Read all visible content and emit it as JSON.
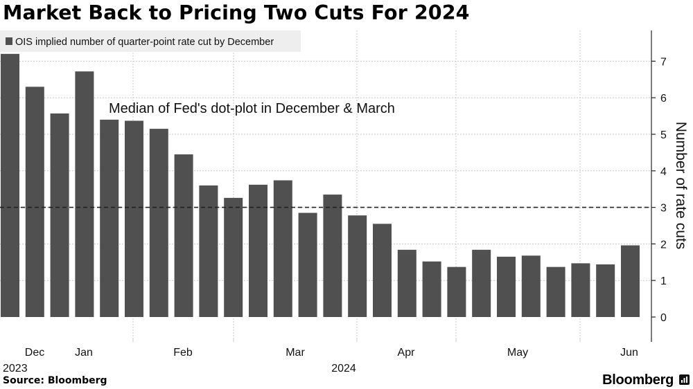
{
  "header": {
    "title": "Market Back to Pricing Two Cuts For 2024"
  },
  "footer": {
    "source": "Source: Bloomberg",
    "brand": "Bloomberg",
    "brand_icon": "chart-icon"
  },
  "colors": {
    "bar": "#505050",
    "grid": "#c8c8c8",
    "axis": "#222222",
    "legend_bg": "#eeeeee"
  },
  "chart_data": {
    "type": "bar",
    "title": "Market Back to Pricing Two Cuts For 2024",
    "ylabel": "Number of rate cuts",
    "xlabel": "",
    "ylim": [
      0,
      8
    ],
    "yticks": [
      0,
      1,
      2,
      3,
      4,
      5,
      6,
      7
    ],
    "grid": true,
    "legend": {
      "position": "top-left",
      "entries": [
        "OIS implied number of quarter-point rate cut by December"
      ]
    },
    "series": [
      {
        "name": "OIS implied number of quarter-point rate cut by December",
        "values": [
          7.2,
          6.3,
          5.57,
          6.72,
          5.4,
          5.37,
          5.15,
          4.45,
          3.6,
          3.26,
          3.62,
          3.74,
          2.85,
          3.35,
          2.78,
          2.55,
          1.84,
          1.52,
          1.37,
          1.84,
          1.65,
          1.68,
          1.37,
          1.47,
          1.44,
          1.96
        ]
      }
    ],
    "reference_line": {
      "value": 3,
      "label": "Median of Fed's dot-plot in December & March",
      "style": "dashed"
    },
    "x_month_labels": [
      "Dec",
      "Jan",
      "Feb",
      "Mar",
      "Apr",
      "May",
      "Jun"
    ],
    "x_year_labels": [
      "2023",
      "2024"
    ]
  }
}
